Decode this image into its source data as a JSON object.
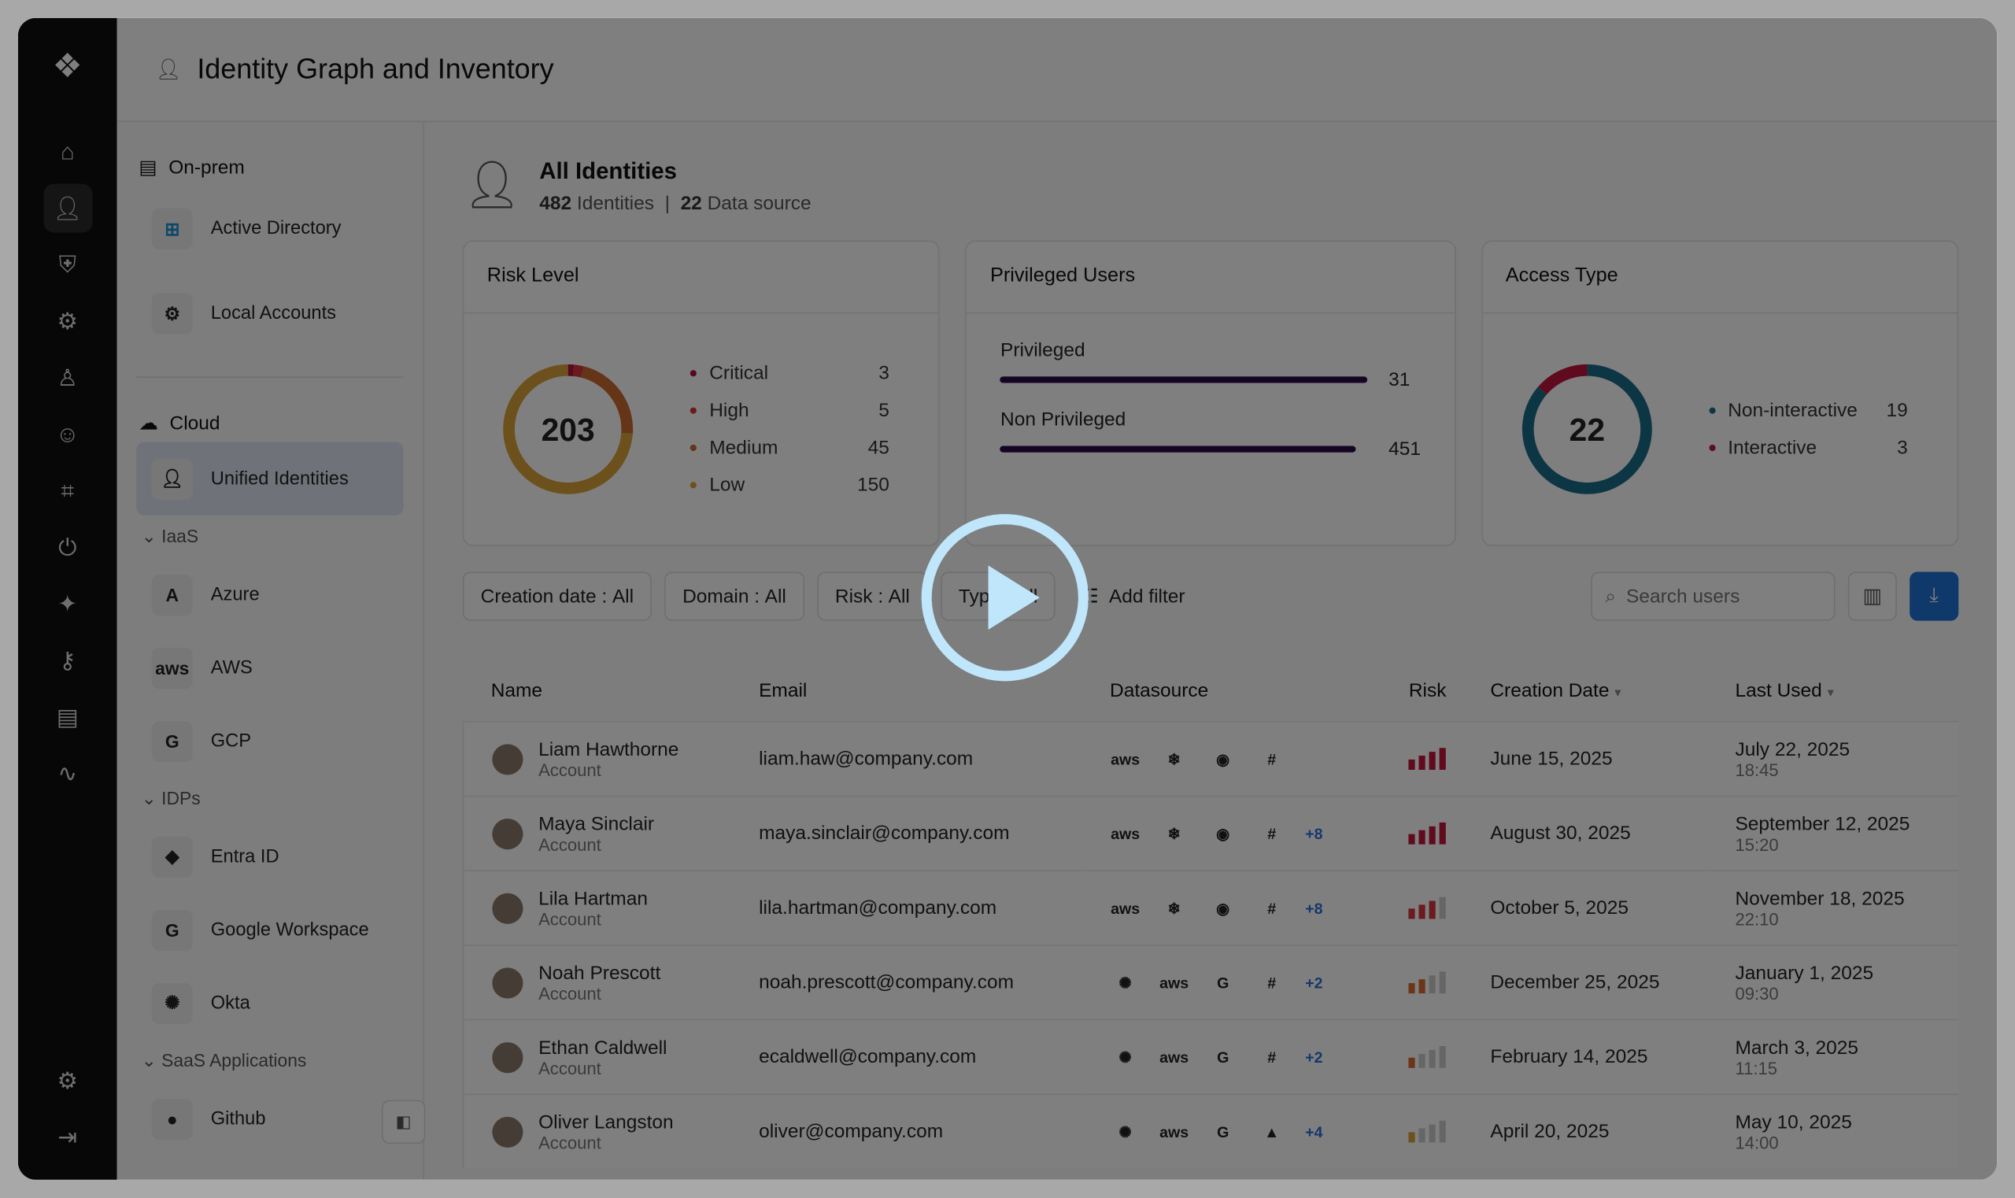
{
  "app": {
    "title": "Identity Graph and Inventory"
  },
  "rail": {
    "icons": [
      "home-icon",
      "user-icon",
      "shield-icon",
      "user-gear-icon",
      "agent-icon",
      "bot-icon",
      "scan-user-icon",
      "power-icon",
      "sparkle-icon",
      "key-icon",
      "document-icon",
      "activity-icon"
    ],
    "bottom": [
      "settings-icon",
      "logout-icon"
    ]
  },
  "sidebar": {
    "onprem": "On-prem",
    "onprem_items": [
      {
        "label": "Active Directory"
      },
      {
        "label": "Local Accounts"
      }
    ],
    "cloud": "Cloud",
    "unified": "Unified Identities",
    "groups": [
      {
        "label": "IaaS",
        "items": [
          {
            "label": "Azure",
            "mark": "A"
          },
          {
            "label": "AWS",
            "mark": "aws"
          },
          {
            "label": "GCP",
            "mark": "G"
          }
        ]
      },
      {
        "label": "IDPs",
        "items": [
          {
            "label": "Entra ID",
            "mark": "◆"
          },
          {
            "label": "Google Workspace",
            "mark": "G"
          },
          {
            "label": "Okta",
            "mark": "✺"
          }
        ]
      },
      {
        "label": "SaaS Applications",
        "items": [
          {
            "label": "Github",
            "mark": "●"
          }
        ]
      }
    ]
  },
  "header": {
    "title": "All Identities",
    "identities_count": "482",
    "identities_label": "Identities",
    "sources_count": "22",
    "sources_label": "Data source"
  },
  "cards": {
    "risk": {
      "title": "Risk Level",
      "total": "203",
      "items": [
        {
          "label": "Critical",
          "value": 3,
          "color": "#b0123a"
        },
        {
          "label": "High",
          "value": 5,
          "color": "#d6343a"
        },
        {
          "label": "Medium",
          "value": 45,
          "color": "#c96a2e"
        },
        {
          "label": "Low",
          "value": 150,
          "color": "#d8a23a"
        }
      ]
    },
    "privileged": {
      "title": "Privileged Users",
      "items": [
        {
          "label": "Privileged",
          "value": "31",
          "fraction": 0.99
        },
        {
          "label": "Non Privileged",
          "value": "451",
          "fraction": 0.96
        }
      ]
    },
    "access": {
      "title": "Access Type",
      "total": "22",
      "items": [
        {
          "label": "Non-interactive",
          "value": 19,
          "color": "#1a6d88"
        },
        {
          "label": "Interactive",
          "value": 3,
          "color": "#c0143d"
        }
      ]
    }
  },
  "filters": {
    "chips": [
      {
        "label": "Creation date :",
        "value": "All"
      },
      {
        "label": "Domain :",
        "value": "All"
      },
      {
        "label": "Risk :",
        "value": "All"
      },
      {
        "label": "Type :",
        "value": "All"
      }
    ],
    "add": "Add filter",
    "search_placeholder": "Search users"
  },
  "table": {
    "headers": [
      "Name",
      "Email",
      "Datasource",
      "Risk",
      "Creation Date",
      "Last Used"
    ],
    "rows": [
      {
        "name": "Liam Hawthorne",
        "type": "Account",
        "email": "liam.haw@company.com",
        "sources": [
          "aws",
          "❄",
          "◉",
          "#"
        ],
        "more": "",
        "risk": 4,
        "risk_color": "#c0143d",
        "created": "June 15, 2025",
        "last_date": "July 22, 2025",
        "last_time": "18:45"
      },
      {
        "name": "Maya Sinclair",
        "type": "Account",
        "email": "maya.sinclair@company.com",
        "sources": [
          "aws",
          "❄",
          "◉",
          "#"
        ],
        "more": "+8",
        "risk": 4,
        "risk_color": "#c0143d",
        "created": "August 30, 2025",
        "last_date": "September 12, 2025",
        "last_time": "15:20"
      },
      {
        "name": "Lila Hartman",
        "type": "Account",
        "email": "lila.hartman@company.com",
        "sources": [
          "aws",
          "❄",
          "◉",
          "#"
        ],
        "more": "+8",
        "risk": 3,
        "risk_color": "#d6343a",
        "created": "October 5, 2025",
        "last_date": "November 18, 2025",
        "last_time": "22:10"
      },
      {
        "name": "Noah Prescott",
        "type": "Account",
        "email": "noah.prescott@company.com",
        "sources": [
          "✺",
          "aws",
          "G",
          "#"
        ],
        "more": "+2",
        "risk": 2,
        "risk_color": "#d96a2e",
        "created": "December 25, 2025",
        "last_date": "January 1, 2025",
        "last_time": "09:30"
      },
      {
        "name": "Ethan Caldwell",
        "type": "Account",
        "email": "ecaldwell@company.com",
        "sources": [
          "✺",
          "aws",
          "G",
          "#"
        ],
        "more": "+2",
        "risk": 1,
        "risk_color": "#d96a2e",
        "created": "February 14, 2025",
        "last_date": "March 3, 2025",
        "last_time": "11:15"
      },
      {
        "name": "Oliver Langston",
        "type": "Account",
        "email": "oliver@company.com",
        "sources": [
          "✺",
          "aws",
          "G",
          "▲"
        ],
        "more": "+4",
        "risk": 1,
        "risk_color": "#d8a23a",
        "created": "April 20, 2025",
        "last_date": "May 10, 2025",
        "last_time": "14:00"
      }
    ]
  }
}
